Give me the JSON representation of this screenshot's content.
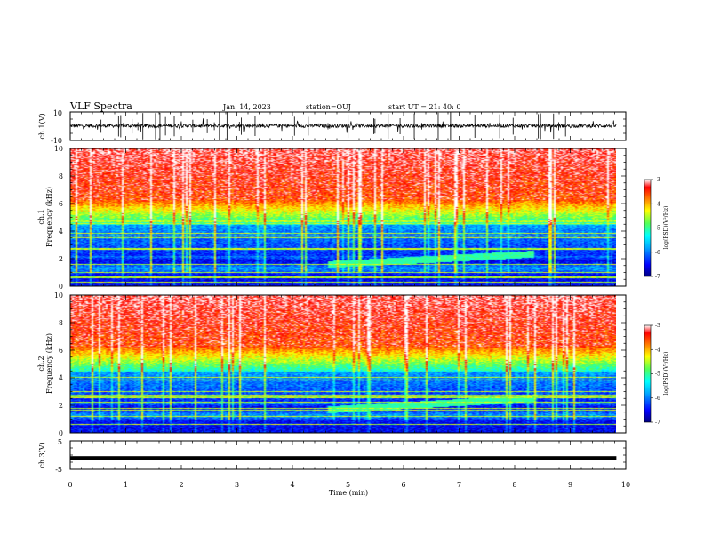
{
  "header": {
    "title": "VLF Spectra",
    "date": "Jan. 14, 2023",
    "station": "station=OUJ",
    "start_ut": "start UT =  21: 40: 0"
  },
  "chart_data": [
    {
      "type": "line",
      "name": "ch1-waveform",
      "ylabel": "ch.1(V)",
      "ylim": [
        -10,
        10
      ],
      "yticks": [
        "10",
        "-10"
      ],
      "xlim": [
        0,
        10
      ]
    },
    {
      "type": "heatmap",
      "name": "ch1-spectrogram",
      "ylabel": "ch.1\nFrequency (kHz)",
      "ylabel_lines": [
        "ch.1",
        "Frequency (kHz)"
      ],
      "ylim": [
        0,
        10
      ],
      "yticks": [
        "0",
        "2",
        "4",
        "6",
        "8",
        "10"
      ],
      "xlim": [
        0,
        9.83
      ],
      "colorbar": {
        "label": "log(PSD)(V²/Hz)",
        "range": [
          -7,
          -3
        ],
        "ticks": [
          "-3",
          "-4",
          "-5",
          "-6",
          "-7"
        ]
      }
    },
    {
      "type": "heatmap",
      "name": "ch2-spectrogram",
      "ylabel": "ch.2\nFrequency (kHz)",
      "ylabel_lines": [
        "ch.2",
        "Frequency (kHz)"
      ],
      "ylim": [
        0,
        10
      ],
      "yticks": [
        "0",
        "2",
        "4",
        "6",
        "8",
        "10"
      ],
      "xlim": [
        0,
        9.83
      ],
      "colorbar": {
        "label": "log(PSD)(V²/Hz)",
        "range": [
          -7,
          -3
        ],
        "ticks": [
          "-3",
          "-4",
          "-5",
          "-6",
          "-7"
        ]
      }
    },
    {
      "type": "line",
      "name": "ch3-waveform",
      "ylabel": "ch.3(V)",
      "ylim": [
        -5,
        5
      ],
      "yticks": [
        "5",
        "-5"
      ],
      "xlim": [
        0,
        10
      ],
      "series": [
        {
          "x": [
            0,
            9.83
          ],
          "y": [
            -1.0,
            -1.0
          ]
        }
      ]
    }
  ],
  "xaxis": {
    "label": "Time (min)",
    "range": [
      0,
      10
    ],
    "ticks": [
      "0",
      "1",
      "2",
      "3",
      "4",
      "5",
      "6",
      "7",
      "8",
      "9",
      "10"
    ]
  },
  "colors": {
    "ch1_trace": "#000000",
    "ch3_trace": "#000000",
    "colormap": [
      "#00007f",
      "#0000ff",
      "#00aaff",
      "#00ffff",
      "#55ff55",
      "#ffff00",
      "#ff7f00",
      "#ff0000",
      "#ffffff"
    ]
  }
}
